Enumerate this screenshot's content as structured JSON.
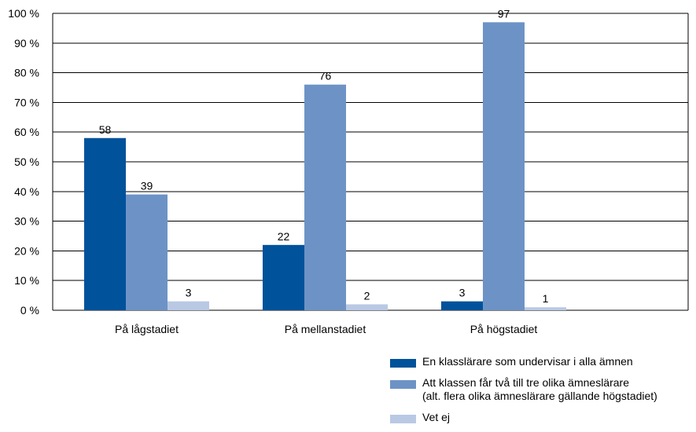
{
  "chart_data": {
    "type": "bar",
    "categories": [
      "På lågstadiet",
      "På mellanstadiet",
      "På högstadiet"
    ],
    "series": [
      {
        "name": "En klasslärare som undervisar i alla ämnen",
        "color": "#00529b",
        "values": [
          58,
          22,
          3
        ]
      },
      {
        "name": "Att klassen får två till tre olika ämneslärare\n(alt. flera olika ämneslärare gällande högstadiet)",
        "color": "#6d93c6",
        "values": [
          39,
          76,
          97
        ]
      },
      {
        "name": "Vet ej",
        "color": "#b9c9e4",
        "values": [
          3,
          2,
          1
        ]
      }
    ],
    "ylim": [
      0,
      100
    ],
    "yticks": [
      "0 %",
      "10 %",
      "20 %",
      "30 %",
      "40 %",
      "50 %",
      "60 %",
      "70 %",
      "80 %",
      "90 %",
      "100 %"
    ],
    "grid": true,
    "legend_position": "bottom-right"
  }
}
